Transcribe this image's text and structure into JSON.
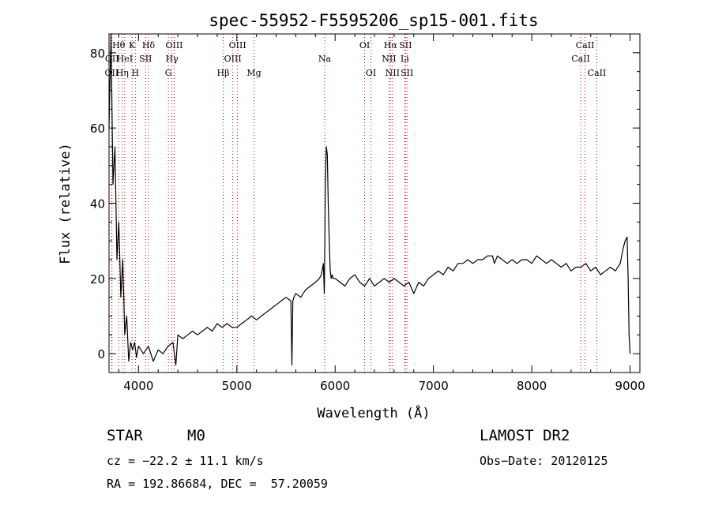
{
  "chart_data": {
    "type": "line",
    "title": "spec-55952-F5595206_sp15-001.fits",
    "xlabel": "Wavelength (Å)",
    "ylabel": "Flux (relative)",
    "xlim": [
      3700,
      9100
    ],
    "ylim": [
      -5,
      85
    ],
    "xticks": [
      4000,
      5000,
      6000,
      7000,
      8000,
      9000
    ],
    "yticks": [
      0,
      20,
      40,
      60,
      80
    ],
    "grid": false,
    "line_color": "#000000",
    "marker_color": "#cc0000",
    "series": [
      {
        "x": [
          3700,
          3720,
          3740,
          3760,
          3780,
          3800,
          3820,
          3840,
          3860,
          3880,
          3900,
          3920,
          3940,
          3960,
          3980,
          4000,
          4050,
          4100,
          4150,
          4200,
          4250,
          4300,
          4350,
          4380,
          4400,
          4450,
          4500,
          4550,
          4600,
          4650,
          4700,
          4750,
          4800,
          4850,
          4900,
          4950,
          5000,
          5050,
          5100,
          5150,
          5200,
          5250,
          5300,
          5350,
          5400,
          5450,
          5500,
          5550,
          5560,
          5570,
          5580,
          5600,
          5650,
          5700,
          5750,
          5800,
          5840,
          5860,
          5880,
          5890,
          5895,
          5900,
          5910,
          5920,
          5930,
          5940,
          5950,
          5960,
          5970,
          5980,
          6000,
          6050,
          6100,
          6150,
          6200,
          6250,
          6300,
          6350,
          6400,
          6450,
          6500,
          6550,
          6600,
          6650,
          6700,
          6750,
          6800,
          6850,
          6900,
          6950,
          7000,
          7050,
          7100,
          7150,
          7200,
          7250,
          7300,
          7350,
          7400,
          7450,
          7500,
          7550,
          7600,
          7620,
          7650,
          7700,
          7750,
          7800,
          7850,
          7900,
          7950,
          8000,
          8050,
          8100,
          8150,
          8200,
          8250,
          8300,
          8350,
          8400,
          8450,
          8500,
          8550,
          8600,
          8650,
          8700,
          8750,
          8800,
          8850,
          8900,
          8930,
          8950,
          8970,
          8980,
          8990,
          9000
        ],
        "y": [
          60,
          85,
          45,
          55,
          25,
          35,
          15,
          25,
          5,
          10,
          -2,
          3,
          1,
          3,
          -1,
          2,
          0,
          2,
          -2,
          1,
          0,
          2,
          3,
          -3,
          5,
          4,
          5,
          6,
          5,
          6,
          7,
          6,
          8,
          7,
          8,
          7,
          7,
          8,
          9,
          10,
          9,
          10,
          11,
          12,
          13,
          14,
          15,
          14,
          -3,
          14,
          15,
          16,
          15,
          17,
          18,
          19,
          20,
          21,
          24,
          16,
          30,
          45,
          55,
          53,
          40,
          30,
          22,
          20,
          21,
          20,
          20,
          19,
          18,
          20,
          21,
          19,
          18,
          20,
          18,
          19,
          20,
          19,
          20,
          19,
          18,
          19,
          16,
          19,
          18,
          20,
          21,
          22,
          21,
          23,
          22,
          24,
          24,
          25,
          24,
          25,
          25,
          26,
          26,
          24,
          26,
          25,
          24,
          25,
          24,
          25,
          25,
          24,
          26,
          25,
          24,
          25,
          24,
          23,
          24,
          22,
          23,
          23,
          24,
          22,
          23,
          21,
          22,
          23,
          22,
          24,
          28,
          30,
          31,
          20,
          5,
          0
        ]
      }
    ],
    "lines": [
      {
        "label": "OII",
        "x": 3727,
        "row": 2
      },
      {
        "label": "OII",
        "x": 3730,
        "row": 1
      },
      {
        "label": "Hθ",
        "x": 3798,
        "row": 0
      },
      {
        "label": "Hη",
        "x": 3835,
        "row": 2
      },
      {
        "label": "HeI",
        "x": 3860,
        "row": 1
      },
      {
        "label": "K",
        "x": 3934,
        "row": 0
      },
      {
        "label": "H",
        "x": 3968,
        "row": 2
      },
      {
        "label": "SII",
        "x": 4072,
        "row": 1
      },
      {
        "label": "Hδ",
        "x": 4102,
        "row": 0
      },
      {
        "label": "G",
        "x": 4304,
        "row": 2
      },
      {
        "label": "Hγ",
        "x": 4340,
        "row": 1
      },
      {
        "label": "OIII",
        "x": 4363,
        "row": 0
      },
      {
        "label": "Hβ",
        "x": 4861,
        "row": 2
      },
      {
        "label": "OIII",
        "x": 4959,
        "row": 1
      },
      {
        "label": "OIII",
        "x": 5007,
        "row": 0
      },
      {
        "label": "Mg",
        "x": 5175,
        "row": 2
      },
      {
        "label": "Na",
        "x": 5894,
        "row": 1
      },
      {
        "label": "OI",
        "x": 6300,
        "row": 0
      },
      {
        "label": "OI",
        "x": 6364,
        "row": 2
      },
      {
        "label": "NII",
        "x": 6548,
        "row": 1
      },
      {
        "label": "Hα",
        "x": 6563,
        "row": 0
      },
      {
        "label": "NII",
        "x": 6583,
        "row": 2
      },
      {
        "label": "Li",
        "x": 6708,
        "row": 1
      },
      {
        "label": "SII",
        "x": 6716,
        "row": 0
      },
      {
        "label": "SII",
        "x": 6731,
        "row": 2
      },
      {
        "label": "CaII",
        "x": 8498,
        "row": 1
      },
      {
        "label": "CaII",
        "x": 8542,
        "row": 0
      },
      {
        "label": "CaII",
        "x": 8662,
        "row": 2
      }
    ]
  },
  "info": {
    "class": "STAR",
    "subclass": "M0",
    "survey": "LAMOST DR2",
    "cz": "cz = −22.2 ± 11.1 km/s",
    "obs_date": "Obs−Date: 20120125",
    "coords": "RA = 192.86684, DEC =  57.20059"
  }
}
